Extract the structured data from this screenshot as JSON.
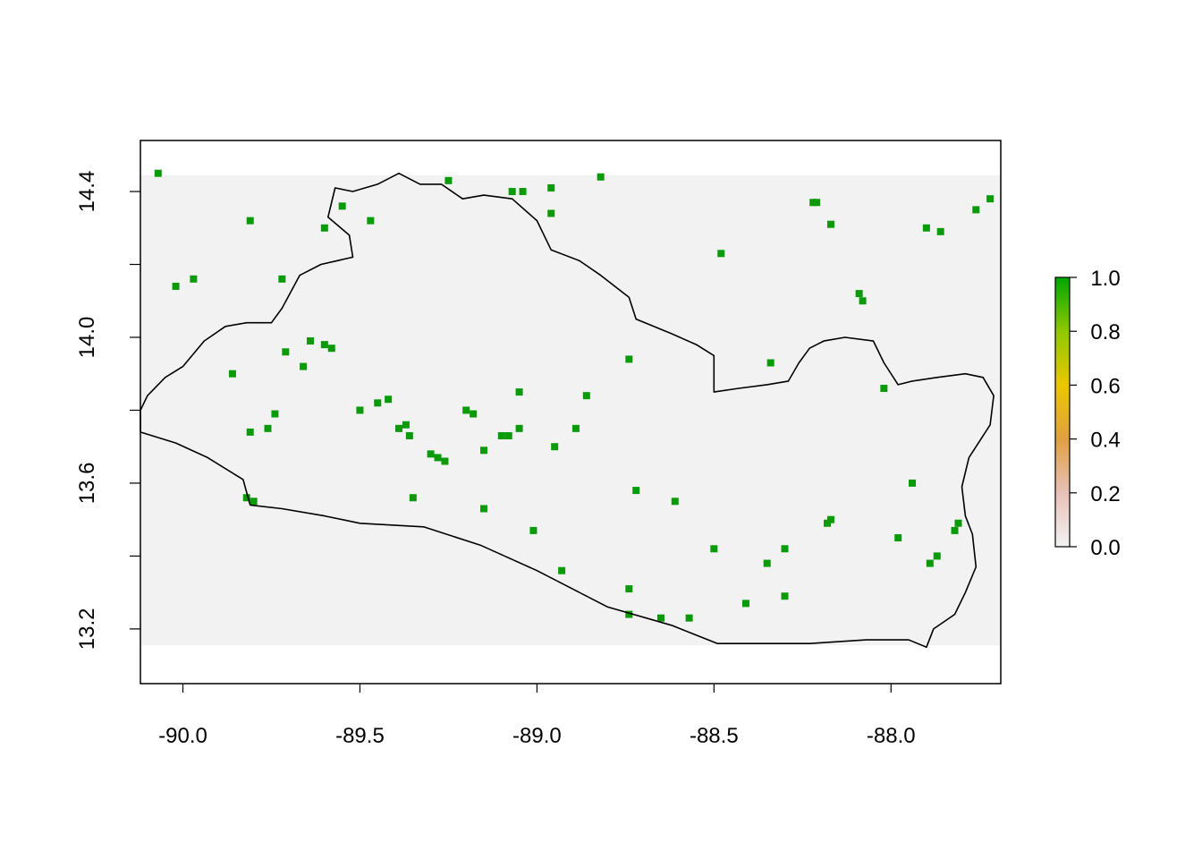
{
  "chart_data": {
    "type": "heatmap",
    "title": "",
    "xlabel": "",
    "ylabel": "",
    "xlim": [
      -90.12,
      -87.69
    ],
    "ylim": [
      13.05,
      14.54
    ],
    "raster_extent": {
      "x": [
        -90.12,
        -87.69
      ],
      "y": [
        13.155,
        14.445
      ]
    },
    "x_ticks": [
      -90.0,
      -89.5,
      -89.0,
      -88.5,
      -88.0
    ],
    "x_tick_labels": [
      "-90.0",
      "-89.5",
      "-89.0",
      "-88.5",
      "-88.0"
    ],
    "y_ticks": [
      13.2,
      13.4,
      13.6,
      13.8,
      14.0,
      14.2,
      14.4
    ],
    "y_tick_labels": [
      "13.2",
      "13.6",
      "14.0",
      "14.4"
    ],
    "y_labeled_ticks": [
      13.2,
      13.6,
      14.0,
      14.4
    ],
    "grid": false,
    "background_color": "#f2f2f2",
    "cell_color": "#0a9a0a",
    "outline_color": "#000000",
    "legend": {
      "placement": "right",
      "range": [
        0.0,
        1.0
      ],
      "ticks": [
        0.0,
        0.2,
        0.4,
        0.6,
        0.8,
        1.0
      ],
      "tick_labels": [
        "0.0",
        "0.2",
        "0.4",
        "0.6",
        "0.8",
        "1.0"
      ],
      "colors": [
        "#f2f2f2",
        "#e7c1b8",
        "#e0a040",
        "#eac700",
        "#8fc800",
        "#00a600"
      ]
    },
    "cells_value": 1.0,
    "cells": [
      [
        -89.2,
        13.8
      ],
      [
        -89.18,
        13.79
      ],
      [
        -89.1,
        13.73
      ],
      [
        -89.08,
        13.73
      ],
      [
        -89.37,
        13.76
      ],
      [
        -89.36,
        13.73
      ],
      [
        -89.39,
        13.75
      ],
      [
        -89.42,
        13.83
      ],
      [
        -89.45,
        13.82
      ],
      [
        -89.28,
        13.67
      ],
      [
        -89.26,
        13.66
      ],
      [
        -89.3,
        13.68
      ],
      [
        -89.6,
        13.98
      ],
      [
        -89.58,
        13.97
      ],
      [
        -89.64,
        13.99
      ],
      [
        -89.74,
        13.79
      ],
      [
        -89.76,
        13.75
      ],
      [
        -89.81,
        13.74
      ],
      [
        -89.82,
        13.56
      ],
      [
        -89.8,
        13.55
      ],
      [
        -88.22,
        14.37
      ],
      [
        -88.21,
        14.37
      ],
      [
        -88.17,
        14.31
      ],
      [
        -88.08,
        14.1
      ],
      [
        -88.09,
        14.12
      ],
      [
        -87.9,
        14.3
      ],
      [
        -87.86,
        14.29
      ],
      [
        -88.17,
        13.5
      ],
      [
        -88.18,
        13.49
      ],
      [
        -88.35,
        13.38
      ],
      [
        -88.3,
        13.42
      ],
      [
        -88.5,
        13.42
      ],
      [
        -88.93,
        13.36
      ],
      [
        -88.74,
        13.31
      ],
      [
        -88.74,
        13.24
      ],
      [
        -88.65,
        13.23
      ],
      [
        -88.57,
        13.23
      ],
      [
        -87.87,
        13.4
      ],
      [
        -87.89,
        13.38
      ],
      [
        -87.82,
        13.47
      ],
      [
        -87.81,
        13.49
      ],
      [
        -89.55,
        14.36
      ],
      [
        -89.6,
        14.3
      ],
      [
        -89.47,
        14.32
      ],
      [
        -89.25,
        14.43
      ],
      [
        -89.07,
        14.4
      ],
      [
        -89.04,
        14.4
      ],
      [
        -88.96,
        14.41
      ],
      [
        -88.82,
        14.44
      ],
      [
        -88.48,
        14.23
      ],
      [
        -88.95,
        13.7
      ],
      [
        -88.89,
        13.75
      ],
      [
        -88.72,
        13.58
      ],
      [
        -88.34,
        13.93
      ],
      [
        -88.74,
        13.94
      ],
      [
        -89.71,
        13.96
      ],
      [
        -89.66,
        13.92
      ],
      [
        -89.5,
        13.8
      ],
      [
        -89.35,
        13.56
      ],
      [
        -89.15,
        13.69
      ],
      [
        -89.05,
        13.75
      ],
      [
        -89.15,
        13.53
      ],
      [
        -89.01,
        13.47
      ],
      [
        -89.05,
        13.85
      ],
      [
        -88.86,
        13.84
      ],
      [
        -88.61,
        13.55
      ],
      [
        -88.41,
        13.27
      ],
      [
        -88.3,
        13.29
      ],
      [
        -87.98,
        13.45
      ],
      [
        -87.94,
        13.6
      ],
      [
        -88.02,
        13.86
      ],
      [
        -87.76,
        14.35
      ],
      [
        -87.72,
        14.38
      ],
      [
        -88.96,
        14.34
      ],
      [
        -89.81,
        14.32
      ],
      [
        -90.07,
        14.45
      ],
      [
        -90.02,
        14.14
      ],
      [
        -89.97,
        14.16
      ],
      [
        -89.86,
        13.9
      ],
      [
        -89.72,
        14.16
      ]
    ],
    "outline": [
      [
        -90.12,
        13.74
      ],
      [
        -90.02,
        13.71
      ],
      [
        -89.93,
        13.67
      ],
      [
        -89.83,
        13.61
      ],
      [
        -89.81,
        13.54
      ],
      [
        -89.72,
        13.53
      ],
      [
        -89.6,
        13.51
      ],
      [
        -89.5,
        13.49
      ],
      [
        -89.32,
        13.48
      ],
      [
        -89.16,
        13.43
      ],
      [
        -89.0,
        13.36
      ],
      [
        -88.8,
        13.26
      ],
      [
        -88.62,
        13.21
      ],
      [
        -88.49,
        13.16
      ],
      [
        -88.23,
        13.16
      ],
      [
        -88.07,
        13.17
      ],
      [
        -87.95,
        13.17
      ],
      [
        -87.9,
        13.15
      ],
      [
        -87.88,
        13.2
      ],
      [
        -87.82,
        13.24
      ],
      [
        -87.79,
        13.3
      ],
      [
        -87.76,
        13.37
      ],
      [
        -87.77,
        13.46
      ],
      [
        -87.79,
        13.51
      ],
      [
        -87.8,
        13.59
      ],
      [
        -87.78,
        13.67
      ],
      [
        -87.72,
        13.76
      ],
      [
        -87.71,
        13.84
      ],
      [
        -87.74,
        13.89
      ],
      [
        -87.79,
        13.9
      ],
      [
        -87.87,
        13.89
      ],
      [
        -87.94,
        13.88
      ],
      [
        -87.98,
        13.87
      ],
      [
        -88.02,
        13.93
      ],
      [
        -88.05,
        13.99
      ],
      [
        -88.13,
        14.0
      ],
      [
        -88.19,
        13.99
      ],
      [
        -88.23,
        13.97
      ],
      [
        -88.26,
        13.93
      ],
      [
        -88.29,
        13.88
      ],
      [
        -88.35,
        13.87
      ],
      [
        -88.43,
        13.86
      ],
      [
        -88.5,
        13.85
      ],
      [
        -88.5,
        13.95
      ],
      [
        -88.55,
        13.98
      ],
      [
        -88.62,
        14.01
      ],
      [
        -88.72,
        14.05
      ],
      [
        -88.74,
        14.11
      ],
      [
        -88.82,
        14.17
      ],
      [
        -88.88,
        14.21
      ],
      [
        -88.96,
        14.24
      ],
      [
        -89.0,
        14.32
      ],
      [
        -89.07,
        14.38
      ],
      [
        -89.15,
        14.39
      ],
      [
        -89.21,
        14.38
      ],
      [
        -89.27,
        14.42
      ],
      [
        -89.33,
        14.42
      ],
      [
        -89.39,
        14.45
      ],
      [
        -89.45,
        14.42
      ],
      [
        -89.52,
        14.4
      ],
      [
        -89.57,
        14.41
      ],
      [
        -89.59,
        14.33
      ],
      [
        -89.53,
        14.28
      ],
      [
        -89.52,
        14.22
      ],
      [
        -89.61,
        14.2
      ],
      [
        -89.67,
        14.17
      ],
      [
        -89.72,
        14.08
      ],
      [
        -89.75,
        14.04
      ],
      [
        -89.82,
        14.04
      ],
      [
        -89.88,
        14.03
      ],
      [
        -89.94,
        13.99
      ],
      [
        -90.0,
        13.92
      ],
      [
        -90.05,
        13.89
      ],
      [
        -90.1,
        13.84
      ],
      [
        -90.12,
        13.8
      ],
      [
        -90.12,
        13.74
      ]
    ]
  }
}
